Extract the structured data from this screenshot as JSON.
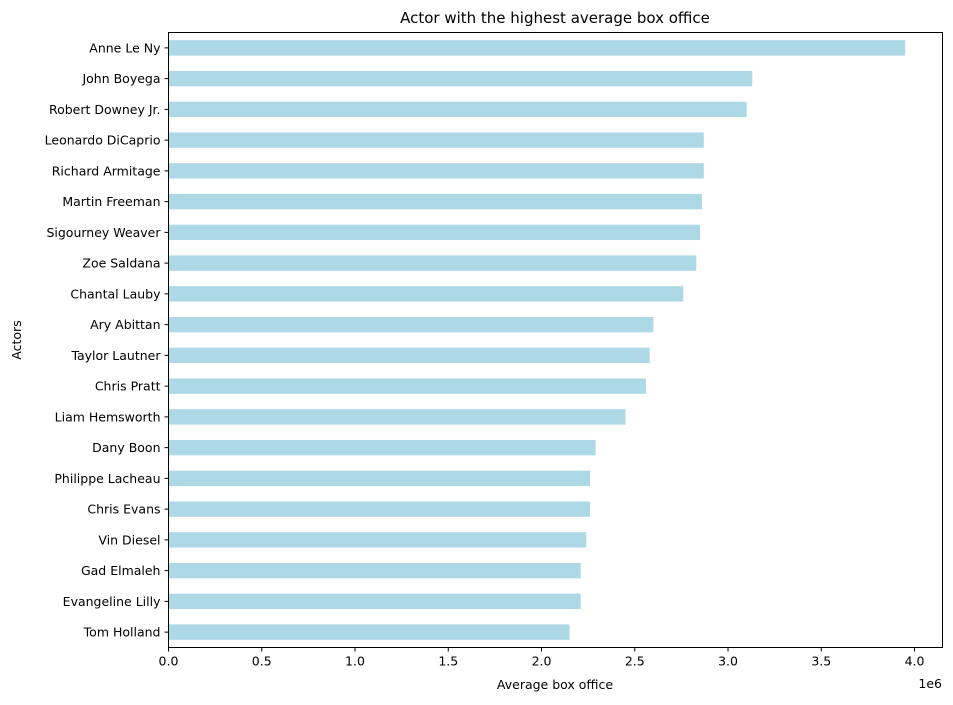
{
  "chart_data": {
    "type": "bar",
    "orientation": "horizontal",
    "title": "Actor with the highest average box office",
    "xlabel": "Average box office",
    "ylabel": "Actors",
    "x_offset_label": "1e6",
    "xlim": [
      0,
      4.15
    ],
    "x_ticks": [
      0.0,
      0.5,
      1.0,
      1.5,
      2.0,
      2.5,
      3.0,
      3.5,
      4.0
    ],
    "x_tick_labels": [
      "0.0",
      "0.5",
      "1.0",
      "1.5",
      "2.0",
      "2.5",
      "3.0",
      "3.5",
      "4.0"
    ],
    "grid": false,
    "bar_color": "#add8e6",
    "categories": [
      "Anne Le Ny",
      "John Boyega",
      "Robert Downey Jr.",
      "Leonardo DiCaprio",
      "Richard Armitage",
      "Martin Freeman",
      "Sigourney Weaver",
      "Zoe Saldana",
      "Chantal Lauby",
      "Ary Abittan",
      "Taylor Lautner",
      "Chris Pratt",
      "Liam Hemsworth",
      "Dany Boon",
      "Philippe Lacheau",
      "Chris Evans",
      "Vin Diesel",
      "Gad Elmaleh",
      "Evangeline Lilly",
      "Tom Holland"
    ],
    "values": [
      3.95,
      3.13,
      3.1,
      2.87,
      2.87,
      2.86,
      2.85,
      2.83,
      2.76,
      2.6,
      2.58,
      2.56,
      2.45,
      2.29,
      2.26,
      2.26,
      2.24,
      2.21,
      2.21,
      2.15
    ]
  }
}
